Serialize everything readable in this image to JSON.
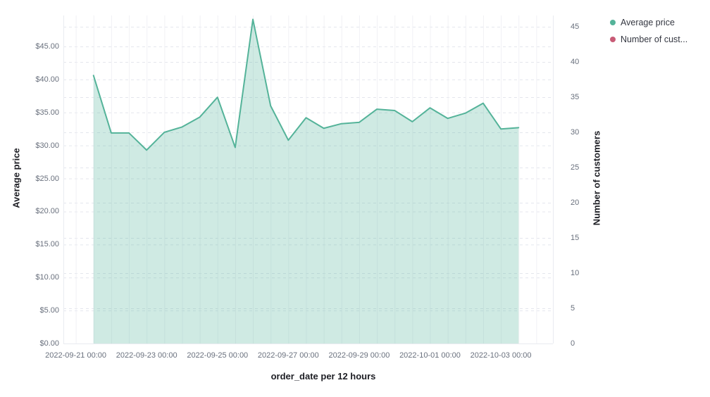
{
  "legend": {
    "items": [
      {
        "label": "Average price",
        "color": "#54B399"
      },
      {
        "label": "Number of cust...",
        "color": "#C85B76"
      }
    ]
  },
  "chart_data": {
    "type": "area",
    "x_axis": {
      "title": "order_date per 12 hours",
      "tick_labels": [
        "2022-09-21 00:00",
        "2022-09-23 00:00",
        "2022-09-25 00:00",
        "2022-09-27 00:00",
        "2022-09-29 00:00",
        "2022-10-01 00:00",
        "2022-10-03 00:00"
      ]
    },
    "left_axis": {
      "title": "Average price",
      "tick_labels": [
        "$0.00",
        "$5.00",
        "$10.00",
        "$15.00",
        "$20.00",
        "$25.00",
        "$30.00",
        "$35.00",
        "$40.00",
        "$45.00"
      ],
      "tick_values": [
        0,
        5,
        10,
        15,
        20,
        25,
        30,
        35,
        40,
        45
      ],
      "range": [
        0,
        49.7
      ],
      "grid": "dashed"
    },
    "right_axis": {
      "title": "Number of customers",
      "tick_labels": [
        "0",
        "5",
        "10",
        "15",
        "20",
        "25",
        "30",
        "35",
        "40",
        "45"
      ],
      "tick_values": [
        0,
        5,
        10,
        15,
        20,
        25,
        30,
        35,
        40,
        45
      ],
      "range": [
        0,
        46.6
      ],
      "grid": "dashed"
    },
    "x": [
      "2022-09-21 12:00",
      "2022-09-22 00:00",
      "2022-09-22 12:00",
      "2022-09-23 00:00",
      "2022-09-23 12:00",
      "2022-09-24 00:00",
      "2022-09-24 12:00",
      "2022-09-25 00:00",
      "2022-09-25 12:00",
      "2022-09-26 00:00",
      "2022-09-26 12:00",
      "2022-09-27 00:00",
      "2022-09-27 12:00",
      "2022-09-28 00:00",
      "2022-09-28 12:00",
      "2022-09-29 00:00",
      "2022-09-29 12:00",
      "2022-09-30 00:00",
      "2022-09-30 12:00",
      "2022-10-01 00:00",
      "2022-10-01 12:00",
      "2022-10-02 00:00",
      "2022-10-02 12:00",
      "2022-10-03 00:00",
      "2022-10-03 12:00"
    ],
    "series": [
      {
        "name": "Average price",
        "axis": "left",
        "color": "#54B399",
        "fill_opacity": 0.28,
        "values": [
          40.6,
          31.9,
          31.9,
          29.3,
          32.0,
          32.8,
          34.3,
          37.3,
          29.7,
          49.1,
          36.0,
          30.8,
          34.2,
          32.6,
          33.3,
          33.5,
          35.5,
          35.3,
          33.6,
          35.7,
          34.1,
          34.9,
          36.4,
          32.5,
          32.7
        ]
      },
      {
        "name": "Number of customers",
        "axis": "right",
        "color": "#C85B76",
        "values": []
      }
    ]
  }
}
